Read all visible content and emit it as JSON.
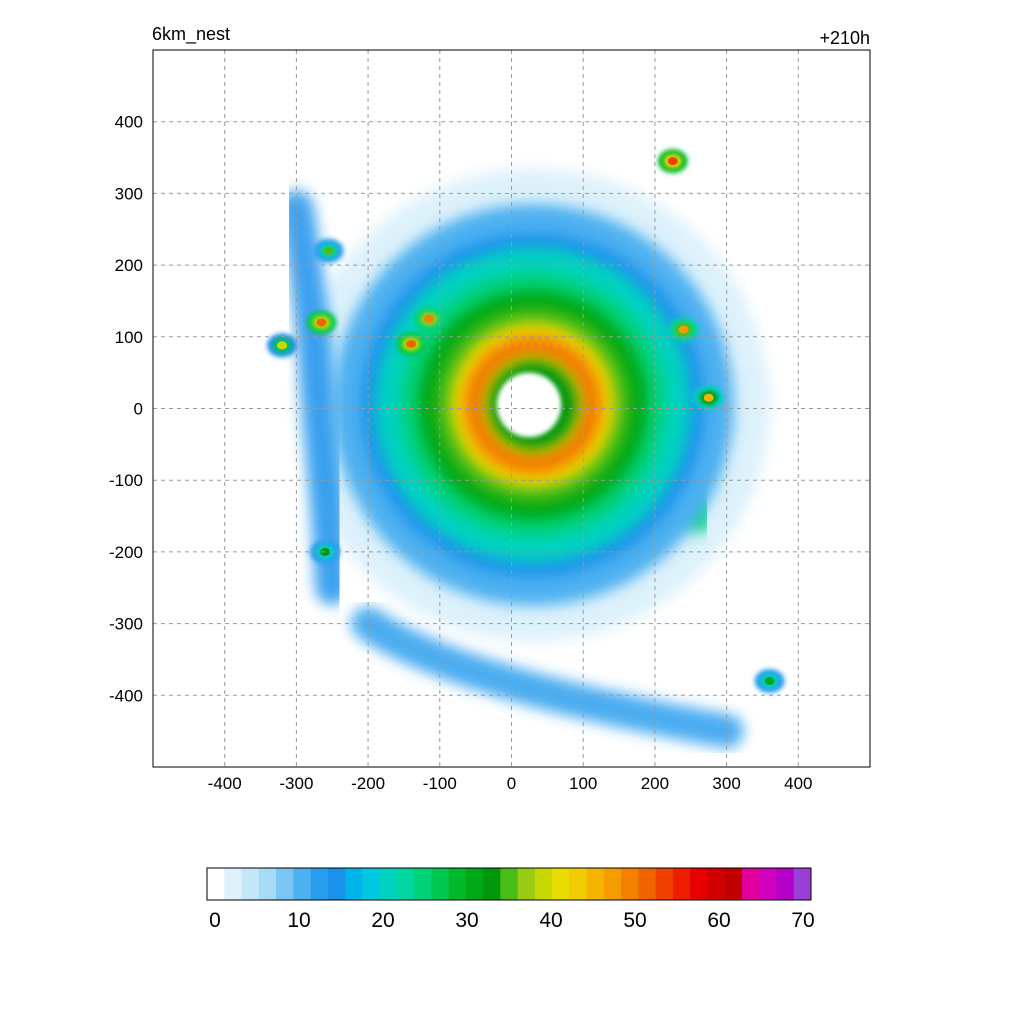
{
  "chart_data": {
    "type": "heatmap",
    "title_left": "6km_nest",
    "title_right": "+210h",
    "xlabel": "",
    "ylabel": "",
    "xlim": [
      -500,
      500
    ],
    "ylim": [
      -500,
      500
    ],
    "x_ticks": [
      -400,
      -300,
      -200,
      -100,
      0,
      100,
      200,
      300,
      400
    ],
    "y_ticks": [
      400,
      300,
      200,
      100,
      0,
      -100,
      -200,
      -300,
      -400
    ],
    "grid": true,
    "colorbar": {
      "orientation": "horizontal",
      "range": [
        0,
        70
      ],
      "step": 2,
      "labels": [
        "0",
        "10",
        "20",
        "30",
        "40",
        "50",
        "60",
        "70"
      ],
      "colors": [
        "#ffffff",
        "#dff1fb",
        "#c3e6f8",
        "#a6dbf6",
        "#79c5f3",
        "#4eb1f0",
        "#2a9eee",
        "#1a92ec",
        "#00b4ea",
        "#00c8e0",
        "#00d2c0",
        "#00d6a0",
        "#00d27a",
        "#00c850",
        "#00b82a",
        "#00a818",
        "#00980a",
        "#4cbc18",
        "#9acc14",
        "#c8d800",
        "#e8dc00",
        "#f0cc00",
        "#f4b400",
        "#f49c00",
        "#f48000",
        "#f06400",
        "#f04000",
        "#f01e00",
        "#e80000",
        "#d00000",
        "#c00000",
        "#e0009c",
        "#d000c0",
        "#b400c8",
        "#9a40d8"
      ]
    },
    "field": {
      "kind": "tropical-cyclone",
      "variable_range": [
        0,
        70
      ],
      "eye": {
        "center": [
          30,
          5
        ],
        "radius": 45
      },
      "eyewall": {
        "radius": 100,
        "peak_value": 50
      },
      "inner_ring": {
        "outer_radius": 220,
        "value": 30
      },
      "spiral_bands": [
        {
          "from": [
            -150,
            120
          ],
          "to": [
            80,
            180
          ],
          "value": 28
        },
        {
          "from": [
            200,
            150
          ],
          "to": [
            260,
            -150
          ],
          "value": 24
        },
        {
          "from": [
            -300,
            280
          ],
          "to": [
            -250,
            -250
          ],
          "value": 14
        },
        {
          "from": [
            -200,
            -300
          ],
          "to": [
            300,
            -450
          ],
          "value": 12
        }
      ],
      "cells": [
        {
          "center": [
            225,
            345
          ],
          "value": 52
        },
        {
          "center": [
            -265,
            120
          ],
          "value": 50
        },
        {
          "center": [
            -140,
            90
          ],
          "value": 50
        },
        {
          "center": [
            -115,
            125
          ],
          "value": 48
        },
        {
          "center": [
            240,
            110
          ],
          "value": 46
        },
        {
          "center": [
            275,
            15
          ],
          "value": 44
        },
        {
          "center": [
            360,
            -380
          ],
          "value": 30
        },
        {
          "center": [
            -255,
            220
          ],
          "value": 34
        },
        {
          "center": [
            -320,
            88
          ],
          "value": 38
        },
        {
          "center": [
            -260,
            -200
          ],
          "value": 32
        }
      ]
    }
  }
}
